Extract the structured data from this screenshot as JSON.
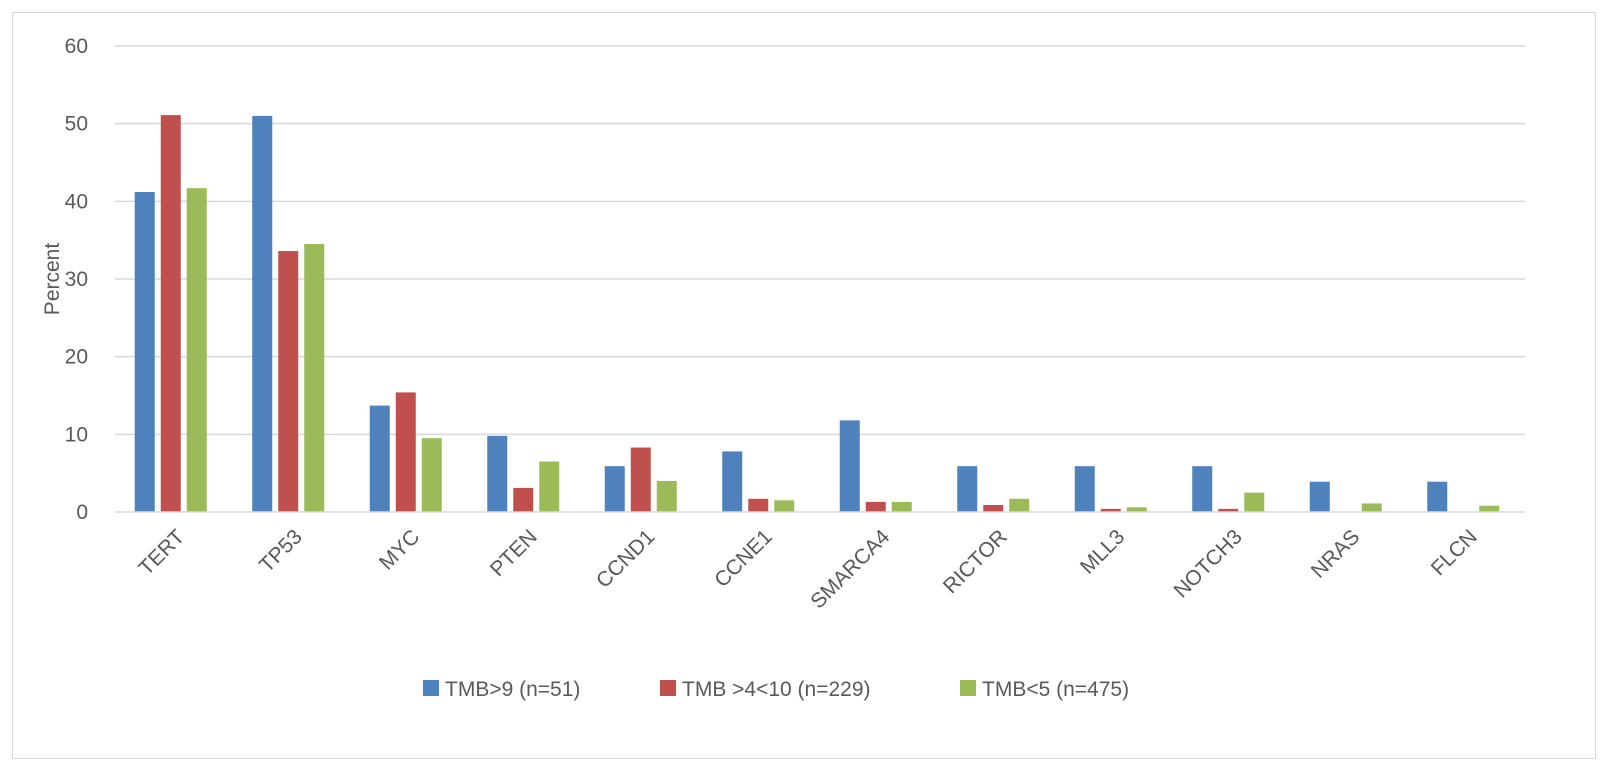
{
  "chart_data": {
    "type": "bar",
    "title": "",
    "xlabel": "",
    "ylabel": "Percent",
    "ylim": [
      0,
      60
    ],
    "yticks": [
      0,
      10,
      20,
      30,
      40,
      50,
      60
    ],
    "grid": true,
    "legend_position": "bottom",
    "categories": [
      "TERT",
      "TP53",
      "MYC",
      "PTEN",
      "CCND1",
      "CCNE1",
      "SMARCA4",
      "RICTOR",
      "MLL3",
      "NOTCH3",
      "NRAS",
      "FLCN"
    ],
    "series": [
      {
        "name": "TMB>9 (n=51)",
        "color": "#4f81bd",
        "values": [
          41.2,
          51.0,
          13.7,
          9.8,
          5.9,
          7.8,
          11.8,
          5.9,
          5.9,
          5.9,
          3.9,
          3.9
        ]
      },
      {
        "name": "TMB >4<10 (n=229)",
        "color": "#c0504d",
        "values": [
          51.1,
          33.6,
          15.4,
          3.1,
          8.3,
          1.7,
          1.3,
          0.9,
          0.4,
          0.4,
          0.0,
          0.0
        ]
      },
      {
        "name": "TMB<5 (n=475)",
        "color": "#9bbb59",
        "values": [
          41.7,
          34.5,
          9.5,
          6.5,
          4.0,
          1.5,
          1.3,
          1.7,
          0.6,
          2.5,
          1.1,
          0.8
        ]
      }
    ]
  }
}
